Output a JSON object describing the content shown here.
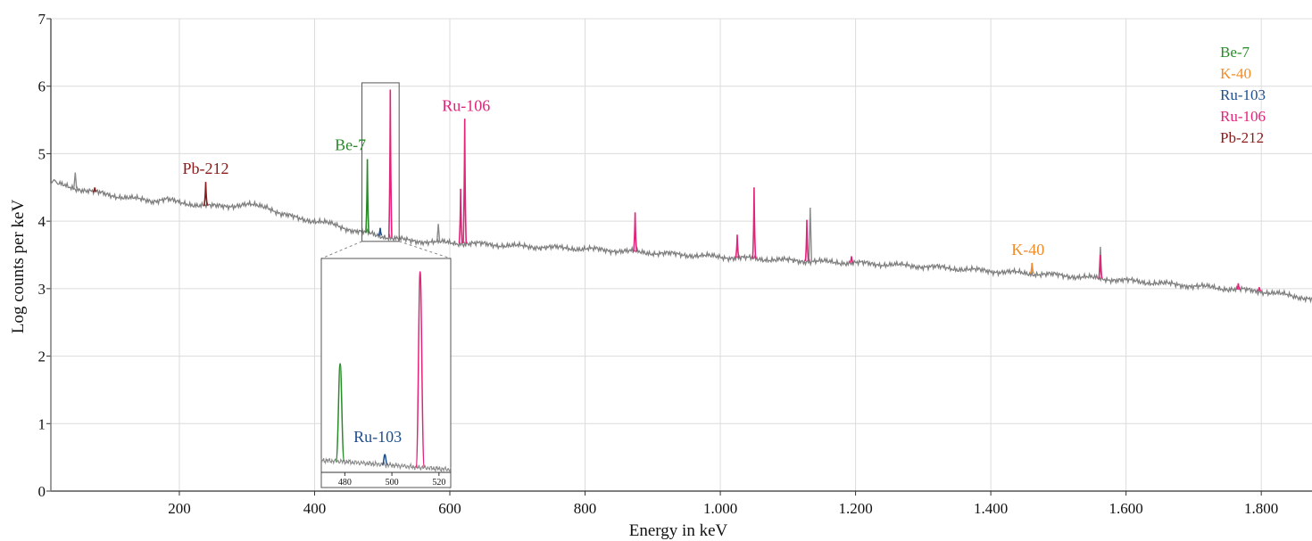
{
  "chart_data": {
    "type": "line",
    "xlabel": "Energy in keV",
    "ylabel": "Log counts per keV",
    "xlim": [
      10,
      1875
    ],
    "ylim": [
      0,
      7
    ],
    "grid": true,
    "x_ticks": [
      200,
      400,
      600,
      800,
      1000,
      1200,
      1400,
      1600,
      1800
    ],
    "x_tick_labels": [
      "200",
      "400",
      "600",
      "800",
      "1.000",
      "1.200",
      "1.400",
      "1.600",
      "1.800"
    ],
    "y_ticks": [
      0,
      1,
      2,
      3,
      4,
      5,
      6,
      7
    ],
    "y_tick_labels": [
      "0",
      "1",
      "2",
      "3",
      "4",
      "5",
      "6",
      "7"
    ],
    "baseline": {
      "name": "",
      "color": "#7f7f7f",
      "x": [
        10,
        15,
        20,
        40,
        80,
        120,
        160,
        180,
        200,
        250,
        300,
        330,
        350,
        380,
        400,
        430,
        460,
        480,
        500,
        520,
        540,
        560,
        600,
        650,
        700,
        800,
        900,
        1000,
        1100,
        1200,
        1300,
        1400,
        1500,
        1600,
        1700,
        1800,
        1875
      ],
      "y": [
        4.55,
        4.62,
        4.55,
        4.5,
        4.42,
        4.35,
        4.3,
        4.33,
        4.27,
        4.22,
        4.24,
        4.22,
        4.1,
        4.04,
        4.0,
        3.95,
        3.85,
        3.82,
        3.78,
        3.74,
        3.71,
        3.7,
        3.68,
        3.66,
        3.63,
        3.59,
        3.53,
        3.47,
        3.42,
        3.38,
        3.33,
        3.26,
        3.2,
        3.12,
        3.04,
        2.96,
        2.85
      ]
    },
    "peaks": [
      {
        "isotope": "Be-7",
        "color": "#2a8a2a",
        "energy": 478,
        "height": 4.92
      },
      {
        "isotope": "Ru-103",
        "color": "#1f4e8c",
        "energy": 497,
        "height": 3.9
      },
      {
        "isotope": "Ru-106",
        "color": "#e2237a",
        "energy": 512,
        "height": 5.95
      },
      {
        "isotope": "Ru-106",
        "color": "#e2237a",
        "energy": 616,
        "height": 4.48
      },
      {
        "isotope": "Ru-106",
        "color": "#e2237a",
        "energy": 622,
        "height": 5.52
      },
      {
        "isotope": "Ru-106",
        "color": "#e2237a",
        "energy": 874,
        "height": 4.13
      },
      {
        "isotope": "Ru-106",
        "color": "#e2237a",
        "energy": 1050,
        "height": 4.5
      },
      {
        "isotope": "Ru-106",
        "color": "#e2237a",
        "energy": 1025,
        "height": 3.8
      },
      {
        "isotope": "Ru-106",
        "color": "#e2237a",
        "energy": 1128,
        "height": 4.02
      },
      {
        "isotope": "Ru-106",
        "color": "#e2237a",
        "energy": 1194,
        "height": 3.48
      },
      {
        "isotope": "Ru-106",
        "color": "#e2237a",
        "energy": 1562,
        "height": 3.5
      },
      {
        "isotope": "Ru-106",
        "color": "#e2237a",
        "energy": 1766,
        "height": 3.08
      },
      {
        "isotope": "Ru-106",
        "color": "#e2237a",
        "energy": 1797,
        "height": 3.02
      },
      {
        "isotope": "Pb-212",
        "color": "#8b1a1a",
        "energy": 239,
        "height": 4.58
      },
      {
        "isotope": "Pb-212",
        "color": "#8b1a1a",
        "energy": 75,
        "height": 4.5
      },
      {
        "isotope": "K-40",
        "color": "#f28c28",
        "energy": 1461,
        "height": 3.38
      }
    ],
    "gray_peaks": [
      {
        "energy": 46,
        "height": 4.72
      },
      {
        "energy": 583,
        "height": 3.96
      },
      {
        "energy": 1133,
        "height": 4.2
      },
      {
        "energy": 1562,
        "height": 3.62
      }
    ],
    "annotations": [
      {
        "text": "Pb-212",
        "color": "#8b1a1a",
        "x": 239,
        "y": 4.7
      },
      {
        "text": "Be-7",
        "color": "#2a8a2a",
        "x": 453,
        "y": 5.05
      },
      {
        "text": "Ru-106",
        "color": "#e2237a",
        "x": 624,
        "y": 5.63
      },
      {
        "text": "K-40",
        "color": "#f28c28",
        "x": 1455,
        "y": 3.5
      }
    ],
    "legend": {
      "position": "top-right",
      "entries": [
        {
          "label": "Be-7",
          "color": "#2a8a2a"
        },
        {
          "label": "K-40",
          "color": "#f28c28"
        },
        {
          "label": "Ru-103",
          "color": "#1f4e8c"
        },
        {
          "label": "Ru-106",
          "color": "#e2237a"
        },
        {
          "label": "Pb-212",
          "color": "#8b1a1a"
        }
      ]
    },
    "inset": {
      "zoom_xlim": [
        470,
        525
      ],
      "zoom_ylim": [
        3.7,
        6.05
      ],
      "x_ticks": [
        480,
        500,
        520
      ],
      "x_tick_labels": [
        "480",
        "500",
        "520"
      ],
      "annotation": {
        "text": "Ru-103",
        "color": "#1f4e8c"
      }
    }
  }
}
